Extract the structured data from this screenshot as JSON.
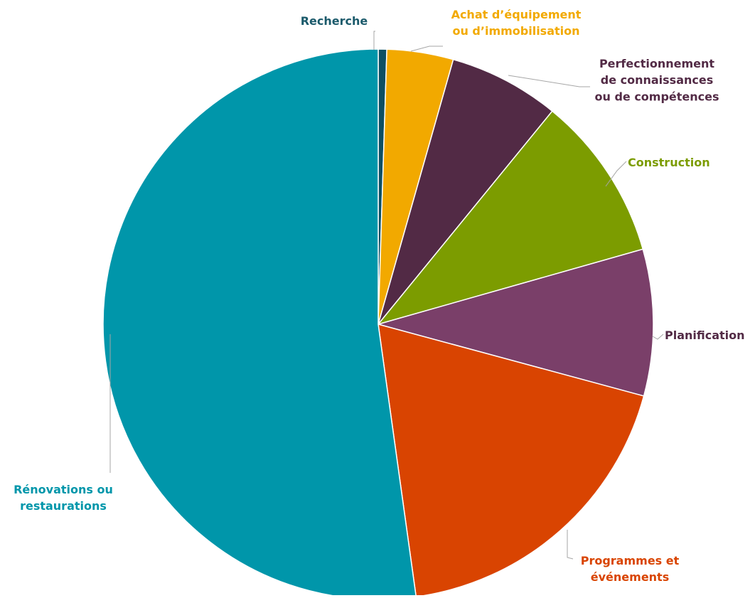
{
  "chart_data": {
    "type": "pie",
    "title": "",
    "legend": "none",
    "categories": [
      "Recherche",
      "Achat d’équipement ou d’immobilisation",
      "Perfectionnement de connaissances ou de compétences",
      "Construction",
      "Planification",
      "Programmes et événements",
      "Rénovations ou restaurations"
    ],
    "values": [
      0.5,
      3.9,
      6.5,
      9.7,
      8.6,
      18.6,
      52.2
    ],
    "slices": [
      {
        "label_lines": [
          "Recherche"
        ],
        "value": 0.5,
        "color": "#0d4f63",
        "label_color": "#1b5a6b"
      },
      {
        "label_lines": [
          "Achat d’équipement",
          "ou d’immobilisation"
        ],
        "value": 3.9,
        "color": "#f2a900",
        "label_color": "#f2a900"
      },
      {
        "label_lines": [
          "Perfectionnement",
          "de connaissances",
          "ou de compétences"
        ],
        "value": 6.5,
        "color": "#522a45",
        "label_color": "#522a45"
      },
      {
        "label_lines": [
          "Construction"
        ],
        "value": 9.7,
        "color": "#7c9c00",
        "label_color": "#7c9c00"
      },
      {
        "label_lines": [
          "Planification"
        ],
        "value": 8.6,
        "color": "#7a3f69",
        "label_color": "#522a45"
      },
      {
        "label_lines": [
          "Programmes et",
          "événements"
        ],
        "value": 18.6,
        "color": "#d94401",
        "label_color": "#d94401"
      },
      {
        "label_lines": [
          "Rénovations ou",
          "restaurations"
        ],
        "value": 52.2,
        "color": "#0096aa",
        "label_color": "#0096aa"
      }
    ]
  }
}
